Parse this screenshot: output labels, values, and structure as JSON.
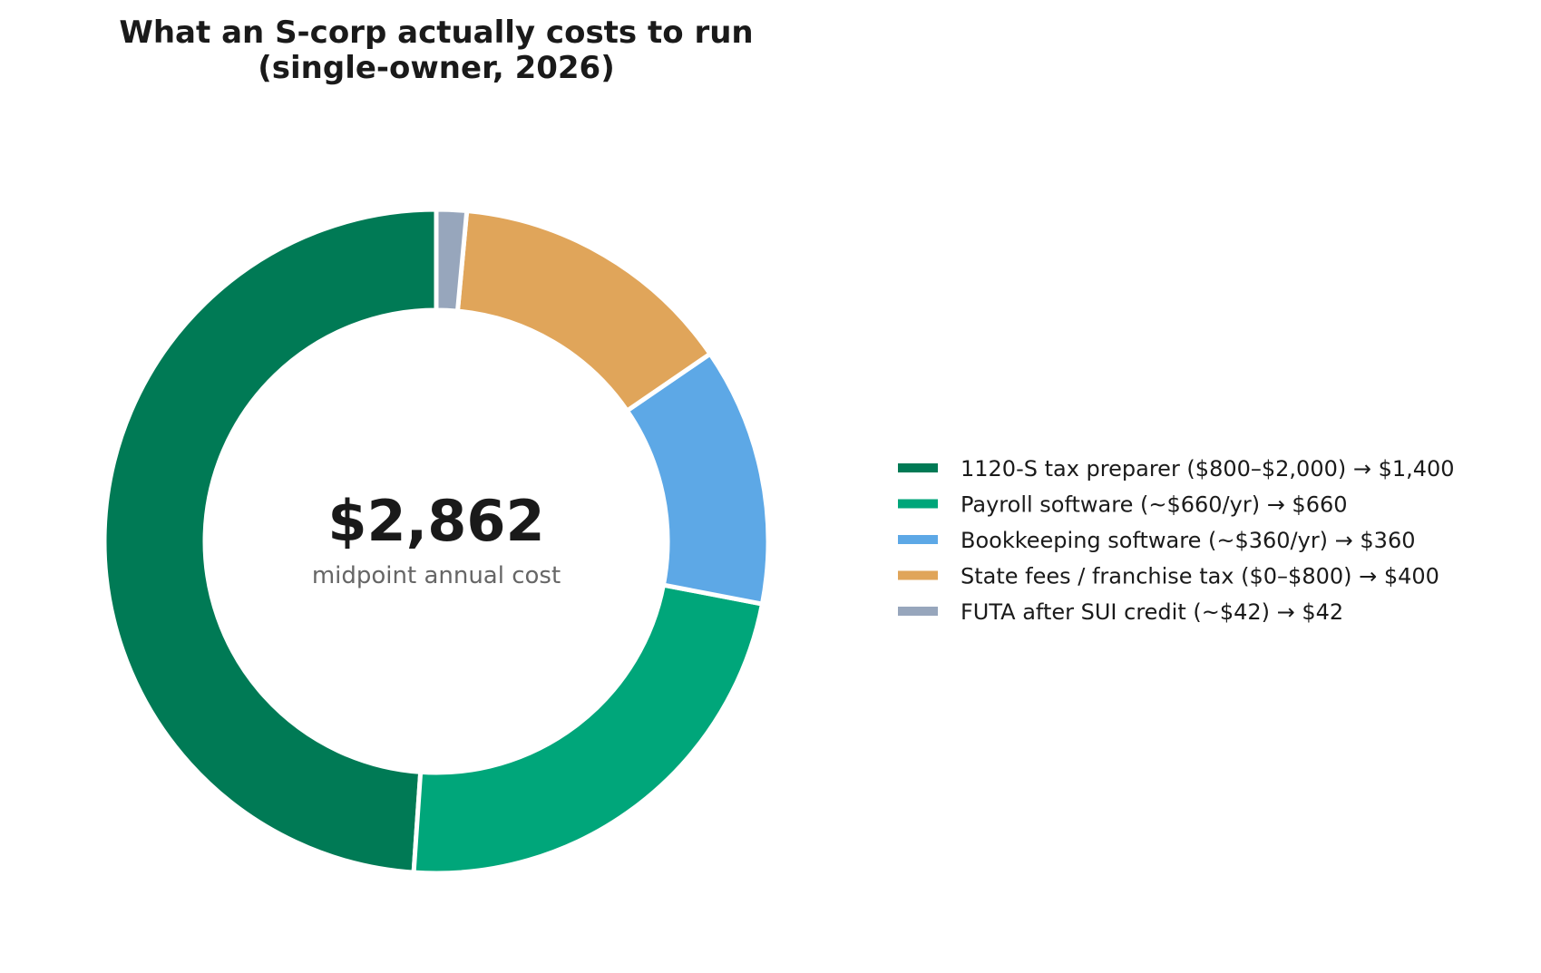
{
  "chart_data": {
    "type": "pie",
    "title_lines": [
      "What an S-corp actually costs to run",
      "(single-owner, 2026)"
    ],
    "center_value": "$2,862",
    "center_caption": "midpoint annual cost",
    "legend_position": "right",
    "slices": [
      {
        "label": "1120-S tax preparer ($800–$2,000)  →  $1,400",
        "value": 1400,
        "color": "#007A55"
      },
      {
        "label": "Payroll software (~$660/yr)  →  $660",
        "value": 660,
        "color": "#00A67A"
      },
      {
        "label": "Bookkeeping software (~$360/yr)  →  $360",
        "value": 360,
        "color": "#5DA8E6"
      },
      {
        "label": "State fees / franchise tax ($0–$800)  →  $400",
        "value": 400,
        "color": "#E0A55A"
      },
      {
        "label": "FUTA after SUI credit (~$42)  →  $42",
        "value": 42,
        "color": "#97A6BC"
      }
    ]
  }
}
